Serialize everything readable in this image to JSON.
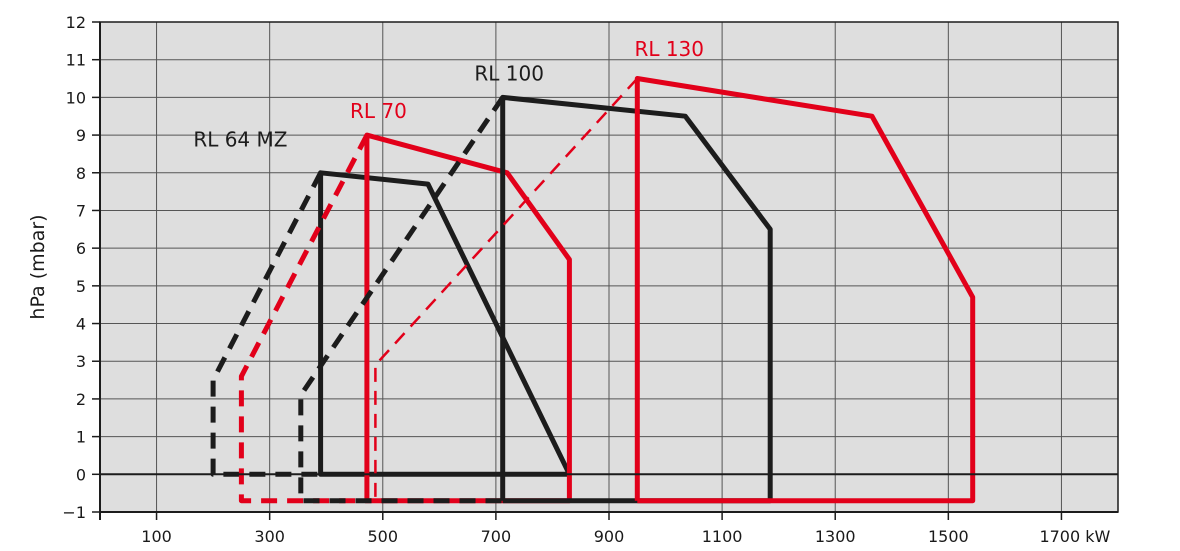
{
  "chart_data": {
    "type": "line",
    "title": "",
    "ylabel": "hPa (mbar)",
    "x_unit": "kW",
    "xlim": [
      0,
      1800
    ],
    "ylim": [
      -1,
      12
    ],
    "x_ticks": [
      100,
      300,
      500,
      700,
      900,
      1100,
      1300,
      1500,
      1700
    ],
    "x_tick_labels": [
      "100",
      "300",
      "500",
      "700",
      "900",
      "1100",
      "1300",
      "1500",
      "1700 kW"
    ],
    "y_ticks": [
      -1,
      0,
      1,
      2,
      3,
      4,
      5,
      6,
      7,
      8,
      9,
      10,
      11,
      12
    ],
    "y_tick_labels": [
      "−1",
      "0",
      "1",
      "2",
      "3",
      "4",
      "5",
      "6",
      "7",
      "8",
      "9",
      "10",
      "11",
      "12"
    ],
    "grid": true,
    "colors": {
      "plot_bg": "#dedede",
      "black": "#1c1c1c",
      "red": "#e2001a"
    },
    "series": [
      {
        "name": "RL 64 MZ",
        "color": "#1c1c1c",
        "label_at": [
          165,
          8.7
        ],
        "solid": [
          [
            830,
            0
          ],
          [
            390,
            0
          ],
          [
            390,
            8
          ],
          [
            580,
            7.7
          ],
          [
            830,
            0
          ]
        ],
        "dashed": [
          [
            390,
            8
          ],
          [
            200,
            2.5
          ],
          [
            200,
            0
          ],
          [
            390,
            0
          ]
        ],
        "thin_dashed": []
      },
      {
        "name": "RL 70",
        "color": "#e2001a",
        "label_at": [
          442,
          9.45
        ],
        "solid": [
          [
            472,
            -0.7
          ],
          [
            472,
            9
          ],
          [
            720,
            8
          ],
          [
            830,
            5.7
          ],
          [
            830,
            -0.7
          ],
          [
            472,
            -0.7
          ]
        ],
        "dashed": [
          [
            472,
            9
          ],
          [
            250,
            2.6
          ],
          [
            250,
            -0.7
          ],
          [
            472,
            -0.7
          ]
        ],
        "thin_dashed": []
      },
      {
        "name": "RL 100",
        "color": "#1c1c1c",
        "label_at": [
          662,
          10.45
        ],
        "solid": [
          [
            712,
            -0.7
          ],
          [
            712,
            10
          ],
          [
            1035,
            9.5
          ],
          [
            1185,
            6.5
          ],
          [
            1185,
            -0.7
          ],
          [
            712,
            -0.7
          ]
        ],
        "dashed": [
          [
            712,
            10
          ],
          [
            355,
            2.1
          ],
          [
            355,
            -0.7
          ],
          [
            712,
            -0.7
          ]
        ],
        "thin_dashed": []
      },
      {
        "name": "RL 130",
        "color": "#e2001a",
        "label_at": [
          945,
          11.1
        ],
        "solid": [
          [
            950,
            -0.7
          ],
          [
            950,
            10.5
          ],
          [
            1365,
            9.5
          ],
          [
            1543,
            4.7
          ],
          [
            1543,
            -0.7
          ],
          [
            950,
            -0.7
          ]
        ],
        "dashed": [],
        "thin_dashed": [
          [
            950,
            10.5
          ],
          [
            487,
            2.9
          ],
          [
            487,
            -0.7
          ]
        ]
      }
    ]
  }
}
